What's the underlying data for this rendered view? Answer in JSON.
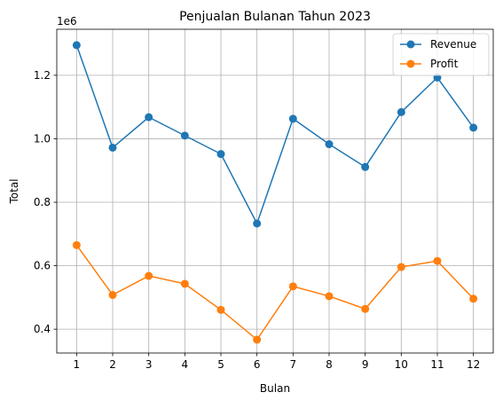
{
  "chart_data": {
    "type": "line",
    "title": "Penjualan Bulanan Tahun 2023",
    "xlabel": "Bulan",
    "ylabel": "Total",
    "y_offset_label": "1e6",
    "x": [
      1,
      2,
      3,
      4,
      5,
      6,
      7,
      8,
      9,
      10,
      11,
      12
    ],
    "x_ticks": [
      "1",
      "2",
      "3",
      "4",
      "5",
      "6",
      "7",
      "8",
      "9",
      "10",
      "11",
      "12"
    ],
    "y_ticks": [
      400000,
      600000,
      800000,
      1000000,
      1200000
    ],
    "y_tick_labels": [
      "0.4",
      "0.6",
      "0.8",
      "1.0",
      "1.2"
    ],
    "xlim": [
      0.45,
      12.55
    ],
    "ylim": [
      325000,
      1345000
    ],
    "grid": true,
    "legend_position": "top-right",
    "series": [
      {
        "name": "Revenue",
        "color": "#1f77b4",
        "marker": "circle",
        "values": [
          1295000,
          972000,
          1068000,
          1010000,
          952000,
          733000,
          1063000,
          983000,
          911000,
          1084000,
          1193000,
          1035000
        ]
      },
      {
        "name": "Profit",
        "color": "#ff7f0e",
        "marker": "circle",
        "values": [
          665000,
          508000,
          568000,
          543000,
          461000,
          367000,
          535000,
          504000,
          464000,
          596000,
          615000,
          496000
        ]
      }
    ]
  }
}
